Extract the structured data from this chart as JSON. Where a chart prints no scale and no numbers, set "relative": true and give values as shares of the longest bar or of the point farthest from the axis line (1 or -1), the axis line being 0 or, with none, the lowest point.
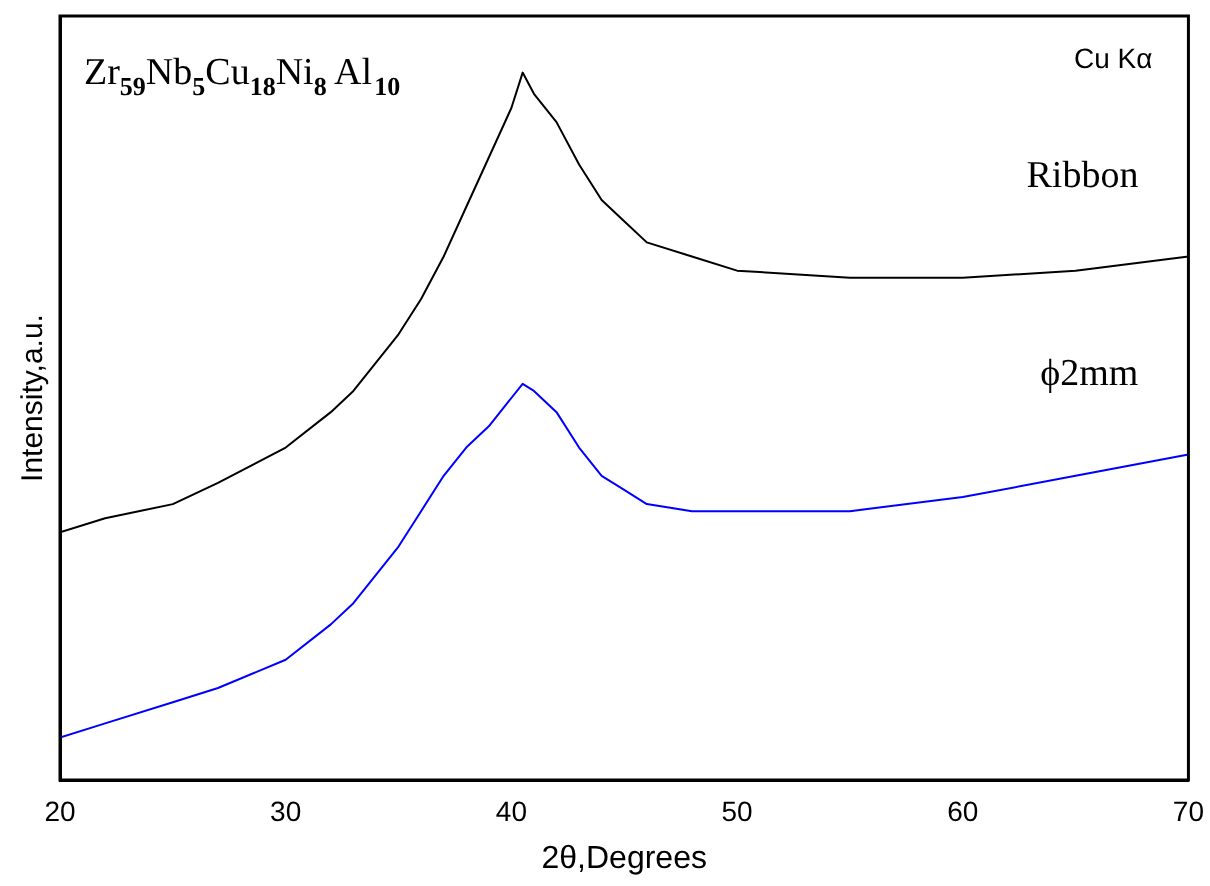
{
  "chart_data": {
    "type": "line",
    "relative": true,
    "xlabel": "2θ,Degrees",
    "ylabel": "Intensity,a.u.",
    "annotations": [
      "Zr$_{59}$Nb$_{5}$Cu$_{18}$Ni$_{8}$ Al$_{10}$",
      "Cu Kα"
    ],
    "xlim": [
      20,
      70
    ],
    "xticks": [
      20,
      30,
      40,
      50,
      60,
      70
    ],
    "grid": false,
    "legend": false,
    "marker": "none",
    "line_style": "solid",
    "series": [
      {
        "name": "Ribbon",
        "color": "#000000",
        "x": [
          20,
          22,
          25,
          27,
          30,
          32,
          33,
          34,
          35,
          36,
          37,
          38,
          39,
          40,
          40.5,
          41,
          42,
          43,
          44,
          45,
          46,
          48,
          50,
          55,
          60,
          65,
          70
        ],
        "values": [
          0.35,
          0.37,
          0.39,
          0.42,
          0.47,
          0.52,
          0.55,
          0.59,
          0.63,
          0.68,
          0.74,
          0.81,
          0.88,
          0.95,
          1,
          0.97,
          0.93,
          0.87,
          0.82,
          0.79,
          0.76,
          0.74,
          0.72,
          0.71,
          0.71,
          0.72,
          0.74
        ]
      },
      {
        "name": "ϕ2mm",
        "color": "#0000ff",
        "x": [
          20,
          22,
          25,
          27,
          30,
          32,
          33,
          34,
          35,
          36,
          37,
          38,
          39,
          40,
          40.5,
          41,
          42,
          43,
          44,
          45,
          46,
          48,
          50,
          55,
          60,
          65,
          70
        ],
        "values": [
          0.06,
          0.08,
          0.11,
          0.13,
          0.17,
          0.22,
          0.25,
          0.29,
          0.33,
          0.38,
          0.43,
          0.47,
          0.5,
          0.54,
          0.56,
          0.55,
          0.52,
          0.47,
          0.43,
          0.41,
          0.39,
          0.38,
          0.38,
          0.38,
          0.4,
          0.43,
          0.46
        ]
      }
    ]
  }
}
